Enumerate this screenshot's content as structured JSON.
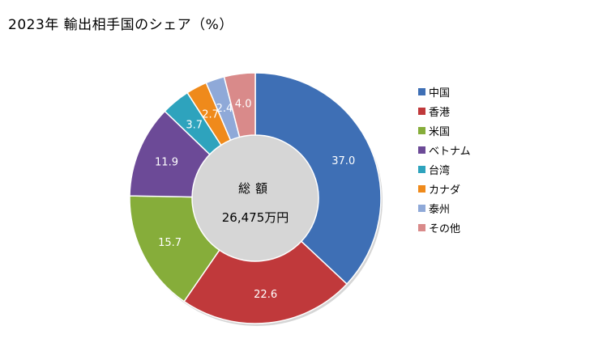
{
  "title": "2023年 輸出相手国のシェア（%）",
  "center": {
    "title": "総額",
    "value": "26,475万円"
  },
  "chart_data": {
    "type": "pie",
    "donut": true,
    "title": "2023年 輸出相手国のシェア（%）",
    "categories": [
      "中国",
      "香港",
      "米国",
      "ベトナム",
      "台湾",
      "カナダ",
      "泰州",
      "その他"
    ],
    "values": [
      37.0,
      22.6,
      15.7,
      11.9,
      3.7,
      2.7,
      2.4,
      4.0
    ],
    "value_labels": [
      "37.0",
      "22.6",
      "15.7",
      "11.9",
      "3.7",
      "2.7",
      "2.4",
      "4.0"
    ],
    "colors": [
      "#3e6fb5",
      "#c0393b",
      "#86ad3a",
      "#6c4a97",
      "#2ea3bd",
      "#ef8a1b",
      "#8fa9d8",
      "#d98a8a"
    ],
    "legend_position": "right",
    "center_text": "総額 26,475万円"
  }
}
